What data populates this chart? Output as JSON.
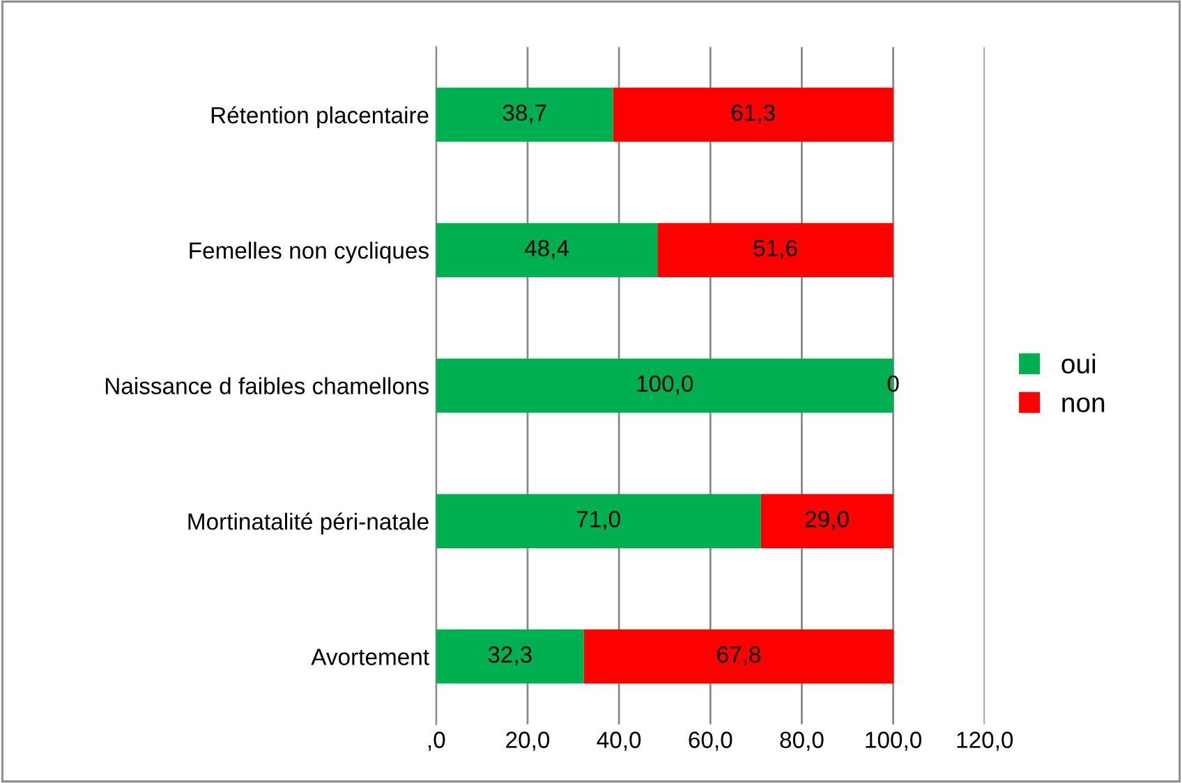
{
  "chart_data": {
    "type": "bar",
    "orientation": "horizontal",
    "stacked": true,
    "categories": [
      "Rétention placentaire",
      "Femelles non cycliques",
      "Naissance d faibles chamellons",
      "Mortinatalité péri-natale",
      "Avortement"
    ],
    "series": [
      {
        "name": "oui",
        "color": "#00b050",
        "values": [
          38.7,
          48.4,
          100.0,
          71.0,
          32.3
        ],
        "value_labels": [
          "38,7",
          "48,4",
          "100,0",
          "71,0",
          "32,3"
        ]
      },
      {
        "name": "non",
        "color": "#ff0000",
        "values": [
          61.3,
          51.6,
          0,
          29.0,
          67.8
        ],
        "value_labels": [
          "61,3",
          "51,6",
          "0",
          "29,0",
          "67,8"
        ]
      }
    ],
    "xlim": [
      0,
      120
    ],
    "xticks": [
      {
        "value": 0,
        "label": ",0"
      },
      {
        "value": 20,
        "label": "20,0"
      },
      {
        "value": 40,
        "label": "40,0"
      },
      {
        "value": 60,
        "label": "60,0"
      },
      {
        "value": 80,
        "label": "80,0"
      },
      {
        "value": 100,
        "label": "100,0"
      },
      {
        "value": 120,
        "label": "120,0"
      }
    ],
    "grid": "x",
    "legend": "right"
  }
}
